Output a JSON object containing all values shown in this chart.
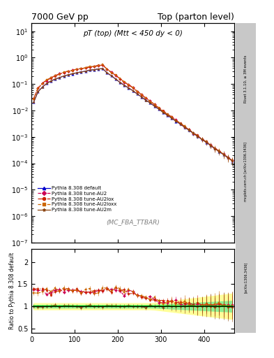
{
  "title_left": "7000 GeV pp",
  "title_right": "Top (parton level)",
  "main_title": "pT (top) (Mtt < 450 dy < 0)",
  "watermark": "(MC_FBA_TTBAR)",
  "ylabel_ratio": "Ratio to Pythia 8.308 default",
  "xlim": [
    0,
    470
  ],
  "ylim_main": [
    1e-07,
    20
  ],
  "ylim_ratio": [
    0.4,
    2.3
  ],
  "ratio_yticks": [
    0.5,
    1.0,
    1.5,
    2.0
  ],
  "series": [
    {
      "label": "Pythia 8.308 default",
      "color": "#0000cc",
      "linestyle": "-",
      "marker": "^",
      "markersize": 2.5
    },
    {
      "label": "Pythia 8.308 tune-AU2",
      "color": "#cc0055",
      "linestyle": "--",
      "marker": "D",
      "markersize": 2.0
    },
    {
      "label": "Pythia 8.308 tune-AU2lox",
      "color": "#cc2200",
      "linestyle": "-.",
      "marker": "o",
      "markersize": 2.0
    },
    {
      "label": "Pythia 8.308 tune-AU2loxx",
      "color": "#cc6600",
      "linestyle": "--",
      "marker": "s",
      "markersize": 2.0
    },
    {
      "label": "Pythia 8.308 tune-AU2m",
      "color": "#8b4513",
      "linestyle": "-",
      "marker": "*",
      "markersize": 2.5
    }
  ],
  "right_texts": [
    "Rivet 3.1.10, ≥ 3M events",
    "mcplots.cern.ch [arXiv:1306.3436]"
  ]
}
